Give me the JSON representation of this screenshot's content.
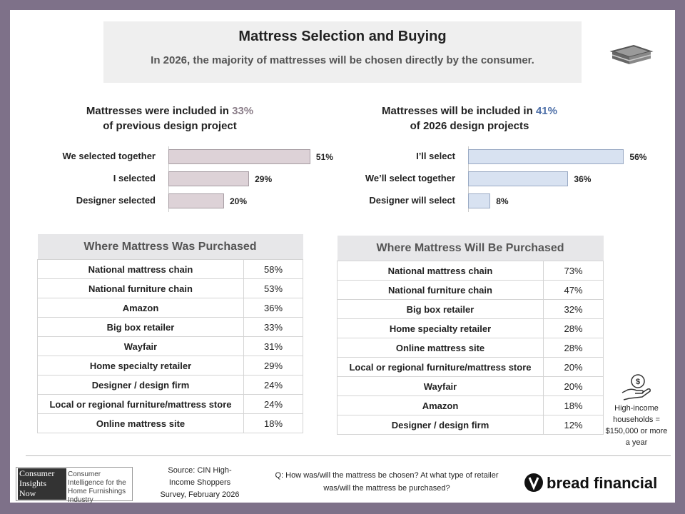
{
  "header": {
    "title": "Mattress Selection and Buying",
    "subtitle": "In 2026, the majority of mattresses will be chosen directly by the consumer."
  },
  "chart_data": [
    {
      "type": "bar",
      "orientation": "horizontal",
      "title": {
        "lead": "Mattresses were included in",
        "highlight": "33%",
        "rest": "of previous design project"
      },
      "highlight_color": "#8c7f8a",
      "categories": [
        "We selected together",
        "I selected",
        "Designer selected"
      ],
      "values": [
        51,
        29,
        20
      ],
      "value_labels": [
        "51%",
        "29%",
        "20%"
      ],
      "color": "#ddd2d7",
      "border_color": "#a69ca2"
    },
    {
      "type": "bar",
      "orientation": "horizontal",
      "title": {
        "lead": "Mattresses will be included in",
        "highlight": "41%",
        "rest": "of 2026 design projects"
      },
      "highlight_color": "#4d6fa8",
      "categories": [
        "I’ll select",
        "We’ll select together",
        "Designer will select"
      ],
      "values": [
        56,
        36,
        8
      ],
      "value_labels": [
        "56%",
        "36%",
        "8%"
      ],
      "color": "#d8e2f1",
      "border_color": "#9aaac4"
    }
  ],
  "tables": [
    {
      "title": "Where Mattress Was Purchased",
      "rows": [
        [
          "National mattress chain",
          "58%"
        ],
        [
          "National furniture chain",
          "53%"
        ],
        [
          "Amazon",
          "36%"
        ],
        [
          "Big box retailer",
          "33%"
        ],
        [
          "Wayfair",
          "31%"
        ],
        [
          "Home specialty retailer",
          "29%"
        ],
        [
          "Designer / design firm",
          "24%"
        ],
        [
          "Local or regional furniture/mattress store",
          "24%"
        ],
        [
          "Online mattress site",
          "18%"
        ]
      ]
    },
    {
      "title": "Where Mattress Will Be Purchased",
      "rows": [
        [
          "National mattress chain",
          "73%"
        ],
        [
          "National furniture chain",
          "47%"
        ],
        [
          "Big box retailer",
          "32%"
        ],
        [
          "Home specialty retailer",
          "28%"
        ],
        [
          "Online mattress site",
          "28%"
        ],
        [
          "Local or regional furniture/mattress store",
          "20%"
        ],
        [
          "Wayfair",
          "20%"
        ],
        [
          "Amazon",
          "18%"
        ],
        [
          "Designer / design firm",
          "12%"
        ]
      ]
    }
  ],
  "note": "High-income households = $150,000 or more a year",
  "footer": {
    "source": "Source: CIN High-Income Shoppers Survey, February 2026",
    "question": "Q: How was/will the mattress be chosen? At what type of retailer was/will the mattress be purchased?",
    "logo_left": {
      "lines": [
        "Consumer",
        "Insights",
        "Now"
      ],
      "tagline": "Consumer Intelligence for the Home Furnishings Industry"
    },
    "logo_right": "bread financial"
  }
}
